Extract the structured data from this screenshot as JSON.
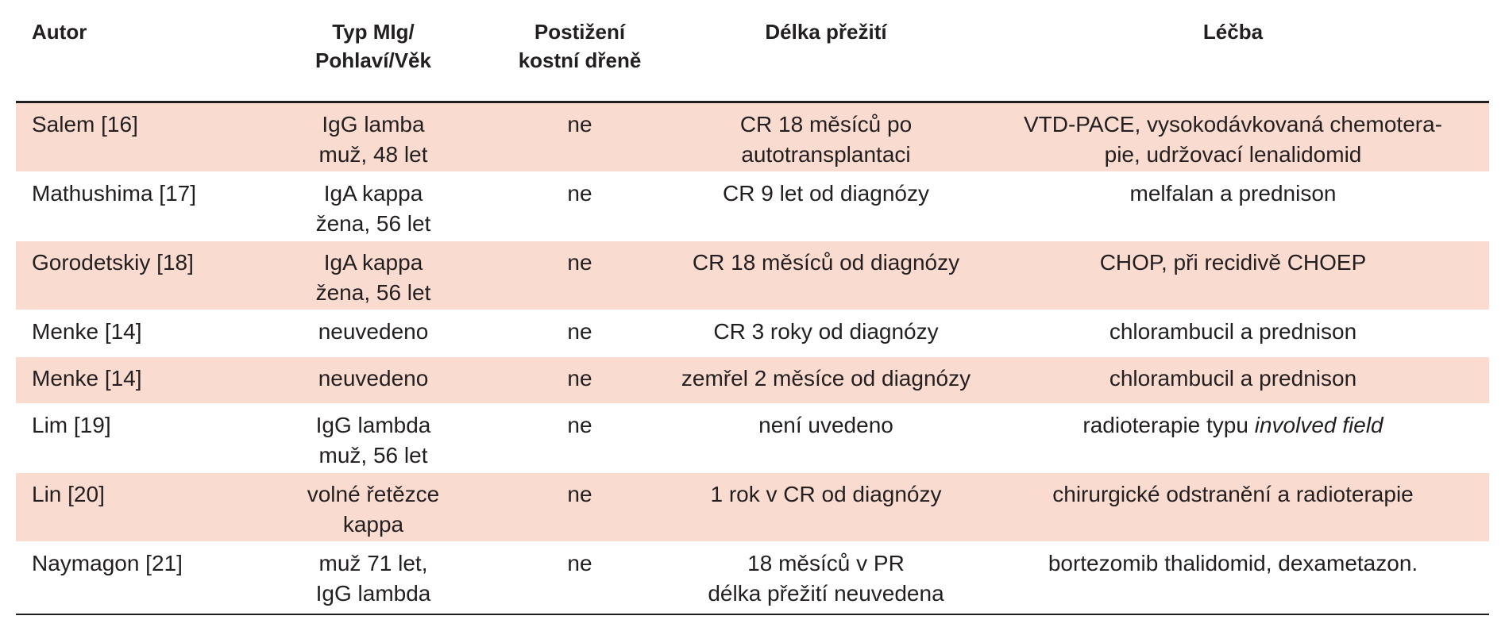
{
  "table": {
    "headers": [
      {
        "lines": [
          "Autor"
        ]
      },
      {
        "lines": [
          "Typ MIg/",
          "Pohlaví/Věk"
        ]
      },
      {
        "lines": [
          "Postižení",
          "kostní dřeně"
        ]
      },
      {
        "lines": [
          "Délka přežití"
        ]
      },
      {
        "lines": [
          "Léčba"
        ]
      }
    ],
    "rows": [
      {
        "autor": "Salem [16]",
        "typ": [
          "IgG lamba",
          "muž, 48 let"
        ],
        "postizeni": "ne",
        "delka": [
          "CR 18 měsíců po",
          "autotransplantaci"
        ],
        "lecba": [
          "VTD-PACE, vysokodávkovaná chemotera-",
          "pie, udržovací lenalidomid"
        ],
        "lecba_italic": ""
      },
      {
        "autor": "Mathushima [17]",
        "typ": [
          "IgA kappa",
          "žena, 56 let"
        ],
        "postizeni": "ne",
        "delka": [
          "CR 9 let od diagnózy"
        ],
        "lecba": [
          "melfalan a prednison"
        ],
        "lecba_italic": ""
      },
      {
        "autor": "Gorodetskiy [18]",
        "typ": [
          "IgA kappa",
          "žena, 56 let"
        ],
        "postizeni": "ne",
        "delka": [
          "CR 18 měsíců od diagnózy"
        ],
        "lecba": [
          "CHOP, při recidivě CHOEP"
        ],
        "lecba_italic": ""
      },
      {
        "autor": "Menke [14]",
        "typ": [
          "neuvedeno"
        ],
        "postizeni": "ne",
        "delka": [
          "CR 3 roky od diagnózy"
        ],
        "lecba": [
          "chlorambucil a prednison"
        ],
        "lecba_italic": ""
      },
      {
        "autor": "Menke [14]",
        "typ": [
          "neuvedeno"
        ],
        "postizeni": "ne",
        "delka": [
          "zemřel 2 měsíce od diagnózy"
        ],
        "lecba": [
          "chlorambucil a prednison"
        ],
        "lecba_italic": ""
      },
      {
        "autor": "Lim [19]",
        "typ": [
          "IgG lambda",
          "muž, 56 let"
        ],
        "postizeni": "ne",
        "delka": [
          "není uvedeno"
        ],
        "lecba": [
          "radioterapie typu "
        ],
        "lecba_italic": "involved field"
      },
      {
        "autor": "Lin [20]",
        "typ": [
          "volné řetězce",
          "kappa"
        ],
        "postizeni": "ne",
        "delka": [
          "1 rok v CR od diagnózy"
        ],
        "lecba": [
          "chirurgické odstranění a radioterapie"
        ],
        "lecba_italic": ""
      },
      {
        "autor": "Naymagon [21]",
        "typ": [
          "muž 71 let,",
          "IgG lambda"
        ],
        "postizeni": "ne",
        "delka": [
          "18 měsíců v PR",
          "délka přežití neuvedena"
        ],
        "lecba": [
          "bortezomib thalidomid, dexametazon."
        ],
        "lecba_italic": ""
      }
    ]
  }
}
